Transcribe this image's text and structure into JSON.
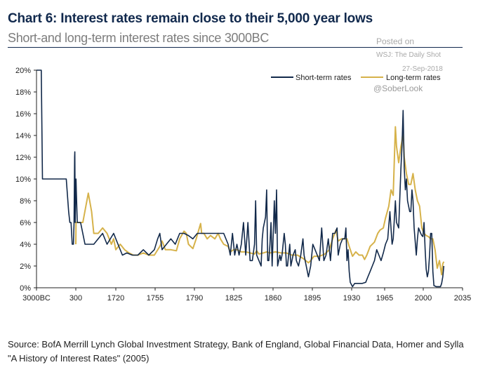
{
  "header": {
    "title": "Chart 6: Interest rates remain close to their 5,000 year lows",
    "subtitle": "Short-and long-term interest rates since 3000BC"
  },
  "watermark": {
    "posted": "Posted on",
    "source": "WSJ: The Daily Shot",
    "date": "27-Sep-2018",
    "handle": "@SoberLook"
  },
  "footer": {
    "source": "Source: BofA Merrill Lynch Global Investment Strategy, Bank of England, Global Financial Data, Homer and Sylla \"A History of Interest Rates\" (2005)"
  },
  "colors": {
    "short": "#12294a",
    "long": "#d6b24a"
  },
  "chart_data": {
    "type": "line",
    "title": "Chart 6: Interest rates remain close to their 5,000 year lows",
    "subtitle": "Short-and long-term interest rates since 3000BC",
    "xlabel": "",
    "ylabel": "",
    "xticks": [
      "3000BC",
      "300",
      "1720",
      "1755",
      "1790",
      "1825",
      "1860",
      "1895",
      "1930",
      "1965",
      "2000",
      "2035"
    ],
    "x_note": "Broken axis: 3000BC-300 compressed at left; linear scale from 1685 to 2035 thereafter",
    "yticks": [
      "0%",
      "2%",
      "4%",
      "6%",
      "8%",
      "10%",
      "12%",
      "14%",
      "16%",
      "18%",
      "20%"
    ],
    "ylim": [
      0,
      20
    ],
    "grid": false,
    "legend": "top-right",
    "series": [
      {
        "name": "Short-term rates",
        "points": [
          [
            "3000BC",
            20
          ],
          [
            "-2600",
            20
          ],
          [
            "-2500",
            10
          ],
          [
            "-2000",
            10
          ],
          [
            "-1000",
            10
          ],
          [
            "-500",
            10
          ],
          [
            "-300",
            7
          ],
          [
            "-200",
            6
          ],
          [
            "-100",
            6
          ],
          [
            "0",
            4
          ],
          [
            "100",
            4
          ],
          [
            "150",
            6
          ],
          [
            "200",
            12
          ],
          [
            "220",
            12.5
          ],
          [
            "250",
            6
          ],
          [
            "280",
            8
          ],
          [
            "300",
            8
          ],
          [
            "320",
            10
          ],
          [
            "340",
            9
          ],
          [
            1685,
            6
          ],
          [
            1688,
            6
          ],
          [
            1692,
            4
          ],
          [
            1700,
            4
          ],
          [
            1708,
            5
          ],
          [
            1712,
            4
          ],
          [
            1718,
            5
          ],
          [
            1722,
            4
          ],
          [
            1726,
            3
          ],
          [
            1730,
            3.2
          ],
          [
            1735,
            3
          ],
          [
            1740,
            3
          ],
          [
            1745,
            3.5
          ],
          [
            1750,
            3
          ],
          [
            1755,
            3.5
          ],
          [
            1758,
            4.5
          ],
          [
            1760,
            5
          ],
          [
            1762,
            3.5
          ],
          [
            1766,
            4
          ],
          [
            1770,
            4.5
          ],
          [
            1774,
            4
          ],
          [
            1778,
            5
          ],
          [
            1782,
            5
          ],
          [
            1786,
            4.8
          ],
          [
            1790,
            4.5
          ],
          [
            1794,
            5
          ],
          [
            1798,
            5
          ],
          [
            1802,
            5
          ],
          [
            1806,
            5
          ],
          [
            1810,
            5
          ],
          [
            1814,
            5
          ],
          [
            1818,
            5
          ],
          [
            1822,
            4
          ],
          [
            1824,
            3
          ],
          [
            1826,
            5
          ],
          [
            1828,
            3
          ],
          [
            1830,
            4
          ],
          [
            1832,
            3
          ],
          [
            1834,
            4
          ],
          [
            1836,
            6
          ],
          [
            1838,
            3
          ],
          [
            1840,
            6
          ],
          [
            1842,
            2.5
          ],
          [
            1844,
            2.5
          ],
          [
            1846,
            4
          ],
          [
            1847,
            8
          ],
          [
            1848,
            3
          ],
          [
            1850,
            2.5
          ],
          [
            1852,
            2
          ],
          [
            1853,
            4.5
          ],
          [
            1854,
            5.5
          ],
          [
            1855,
            6
          ],
          [
            1856,
            6.5
          ],
          [
            1857,
            9
          ],
          [
            1858,
            2.5
          ],
          [
            1859,
            2.5
          ],
          [
            1860,
            4
          ],
          [
            1861,
            6
          ],
          [
            1862,
            2
          ],
          [
            1863,
            5
          ],
          [
            1864,
            8
          ],
          [
            1865,
            5
          ],
          [
            1866,
            9
          ],
          [
            1867,
            2
          ],
          [
            1869,
            3
          ],
          [
            1870,
            2.5
          ],
          [
            1871,
            3
          ],
          [
            1873,
            5
          ],
          [
            1874,
            4
          ],
          [
            1875,
            2
          ],
          [
            1876,
            2
          ],
          [
            1878,
            4
          ],
          [
            1879,
            2
          ],
          [
            1881,
            3
          ],
          [
            1883,
            3.5
          ],
          [
            1884,
            2.5
          ],
          [
            1886,
            2
          ],
          [
            1888,
            3
          ],
          [
            1890,
            4.5
          ],
          [
            1891,
            3
          ],
          [
            1893,
            2
          ],
          [
            1895,
            1
          ],
          [
            1897,
            2
          ],
          [
            1899,
            4
          ],
          [
            1901,
            3.5
          ],
          [
            1903,
            3
          ],
          [
            1905,
            2.5
          ],
          [
            1907,
            5.5
          ],
          [
            1909,
            2.5
          ],
          [
            1911,
            3
          ],
          [
            1913,
            4.5
          ],
          [
            1915,
            2.5
          ],
          [
            1917,
            5
          ],
          [
            1919,
            5
          ],
          [
            1921,
            5.5
          ],
          [
            1922,
            3
          ],
          [
            1924,
            4
          ],
          [
            1926,
            4.5
          ],
          [
            1928,
            4.5
          ],
          [
            1929,
            5.5
          ],
          [
            1930,
            2.5
          ],
          [
            1931,
            3.5
          ],
          [
            1932,
            1.5
          ],
          [
            1933,
            0.5
          ],
          [
            1935,
            0.1
          ],
          [
            1937,
            0.4
          ],
          [
            1939,
            0.4
          ],
          [
            1941,
            0.4
          ],
          [
            1944,
            0.4
          ],
          [
            1947,
            0.5
          ],
          [
            1949,
            1
          ],
          [
            1951,
            1.5
          ],
          [
            1953,
            2
          ],
          [
            1955,
            2.5
          ],
          [
            1957,
            3.5
          ],
          [
            1959,
            3
          ],
          [
            1961,
            2.5
          ],
          [
            1963,
            3.2
          ],
          [
            1965,
            4
          ],
          [
            1967,
            4.5
          ],
          [
            1969,
            7
          ],
          [
            1971,
            4
          ],
          [
            1972,
            4.5
          ],
          [
            1974,
            8
          ],
          [
            1975,
            6
          ],
          [
            1977,
            5.5
          ],
          [
            1979,
            11
          ],
          [
            1980,
            13
          ],
          [
            1981,
            16.3
          ],
          [
            1982,
            11
          ],
          [
            1983,
            9
          ],
          [
            1984,
            10
          ],
          [
            1985,
            8
          ],
          [
            1987,
            7
          ],
          [
            1988,
            7
          ],
          [
            1989,
            9
          ],
          [
            1990,
            8
          ],
          [
            1991,
            5.5
          ],
          [
            1993,
            3
          ],
          [
            1994,
            4.5
          ],
          [
            1995,
            5.5
          ],
          [
            1997,
            5
          ],
          [
            1998,
            4.8
          ],
          [
            1999,
            4.7
          ],
          [
            2000,
            6
          ],
          [
            2001,
            3.5
          ],
          [
            2002,
            1.7
          ],
          [
            2003,
            1
          ],
          [
            2004,
            1.5
          ],
          [
            2005,
            3
          ],
          [
            2006,
            5
          ],
          [
            2007,
            5
          ],
          [
            2008,
            1.5
          ],
          [
            2009,
            0.2
          ],
          [
            2011,
            0.1
          ],
          [
            2013,
            0.1
          ],
          [
            2015,
            0.1
          ],
          [
            2016,
            0.4
          ],
          [
            2017,
            1
          ],
          [
            2018,
            2
          ]
        ]
      },
      {
        "name": "Long-term rates",
        "points": [
          [
            "300",
            4
          ],
          [
            "320",
            6
          ],
          [
            "340",
            6
          ],
          [
            1685,
            6
          ],
          [
            1690,
            6
          ],
          [
            1695,
            8.7
          ],
          [
            1698,
            7
          ],
          [
            1700,
            5
          ],
          [
            1704,
            5
          ],
          [
            1708,
            5.5
          ],
          [
            1712,
            5
          ],
          [
            1716,
            4
          ],
          [
            1718,
            4.5
          ],
          [
            1720,
            3.5
          ],
          [
            1724,
            4
          ],
          [
            1728,
            3.5
          ],
          [
            1732,
            3.2
          ],
          [
            1736,
            3
          ],
          [
            1740,
            3
          ],
          [
            1745,
            3.2
          ],
          [
            1750,
            3
          ],
          [
            1755,
            3
          ],
          [
            1760,
            3.8
          ],
          [
            1762,
            4.3
          ],
          [
            1765,
            3.5
          ],
          [
            1770,
            3.5
          ],
          [
            1775,
            3.4
          ],
          [
            1778,
            4.5
          ],
          [
            1782,
            5.2
          ],
          [
            1784,
            5
          ],
          [
            1786,
            4
          ],
          [
            1790,
            3.6
          ],
          [
            1793,
            4.5
          ],
          [
            1797,
            5.9
          ],
          [
            1798,
            5
          ],
          [
            1800,
            5
          ],
          [
            1803,
            4.5
          ],
          [
            1806,
            4.8
          ],
          [
            1810,
            4.5
          ],
          [
            1813,
            5
          ],
          [
            1815,
            4.5
          ],
          [
            1818,
            4
          ],
          [
            1822,
            3.8
          ],
          [
            1824,
            3.3
          ],
          [
            1827,
            3.5
          ],
          [
            1830,
            3.5
          ],
          [
            1834,
            3.3
          ],
          [
            1838,
            3.3
          ],
          [
            1842,
            3.2
          ],
          [
            1846,
            3.1
          ],
          [
            1848,
            3.4
          ],
          [
            1850,
            3.1
          ],
          [
            1854,
            3.2
          ],
          [
            1857,
            3.3
          ],
          [
            1860,
            3.2
          ],
          [
            1865,
            3.3
          ],
          [
            1870,
            3.2
          ],
          [
            1875,
            3.2
          ],
          [
            1880,
            3
          ],
          [
            1885,
            3
          ],
          [
            1890,
            2.7
          ],
          [
            1895,
            2.3
          ],
          [
            1897,
            2.5
          ],
          [
            1900,
            2.9
          ],
          [
            1905,
            2.9
          ],
          [
            1910,
            3.1
          ],
          [
            1914,
            3.5
          ],
          [
            1917,
            4.5
          ],
          [
            1920,
            5.3
          ],
          [
            1922,
            4.3
          ],
          [
            1925,
            4.5
          ],
          [
            1928,
            4.5
          ],
          [
            1930,
            4.5
          ],
          [
            1932,
            3.8
          ],
          [
            1935,
            2.9
          ],
          [
            1938,
            3.3
          ],
          [
            1941,
            3
          ],
          [
            1944,
            3
          ],
          [
            1946,
            2.6
          ],
          [
            1948,
            3
          ],
          [
            1951,
            3.8
          ],
          [
            1955,
            4.2
          ],
          [
            1958,
            5
          ],
          [
            1960,
            5.3
          ],
          [
            1963,
            5.5
          ],
          [
            1965,
            6.4
          ],
          [
            1968,
            7.5
          ],
          [
            1970,
            9
          ],
          [
            1972,
            8.5
          ],
          [
            1974,
            14.8
          ],
          [
            1975,
            13
          ],
          [
            1977,
            11.5
          ],
          [
            1979,
            13
          ],
          [
            1980,
            13.5
          ],
          [
            1981,
            14.5
          ],
          [
            1982,
            12
          ],
          [
            1984,
            10.5
          ],
          [
            1986,
            9.5
          ],
          [
            1988,
            9.5
          ],
          [
            1990,
            10.5
          ],
          [
            1992,
            9
          ],
          [
            1994,
            8
          ],
          [
            1996,
            7.5
          ],
          [
            1998,
            5.5
          ],
          [
            2000,
            5
          ],
          [
            2002,
            4.8
          ],
          [
            2004,
            4.7
          ],
          [
            2006,
            4.5
          ],
          [
            2008,
            4.5
          ],
          [
            2010,
            3.5
          ],
          [
            2012,
            1.8
          ],
          [
            2014,
            2.5
          ],
          [
            2016,
            1.2
          ],
          [
            2017,
            2.2
          ],
          [
            2018,
            2.4
          ]
        ]
      }
    ]
  }
}
